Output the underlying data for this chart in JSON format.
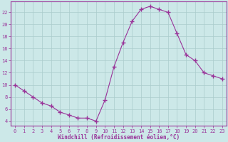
{
  "x": [
    0,
    1,
    2,
    3,
    4,
    5,
    6,
    7,
    8,
    9,
    10,
    11,
    12,
    13,
    14,
    15,
    16,
    17,
    18,
    19,
    20,
    21,
    22,
    23
  ],
  "y": [
    10,
    9,
    8,
    7,
    6.5,
    5.5,
    5,
    4.5,
    4.5,
    4,
    7.5,
    13,
    17,
    20.5,
    22.5,
    23,
    22.5,
    22,
    18.5,
    15,
    14,
    12,
    11.5,
    11
  ],
  "line_color": "#993399",
  "marker": "+",
  "marker_size": 4,
  "bg_color": "#cce8e8",
  "grid_color": "#aacccc",
  "xlabel": "Windchill (Refroidissement éolien,°C)",
  "xlim": [
    -0.5,
    23.5
  ],
  "ylim": [
    3.2,
    23.8
  ],
  "yticks": [
    4,
    6,
    8,
    10,
    12,
    14,
    16,
    18,
    20,
    22
  ],
  "xticks": [
    0,
    1,
    2,
    3,
    4,
    5,
    6,
    7,
    8,
    9,
    10,
    11,
    12,
    13,
    14,
    15,
    16,
    17,
    18,
    19,
    20,
    21,
    22,
    23
  ],
  "tick_color": "#993399",
  "label_color": "#993399",
  "spine_color": "#993399",
  "tick_fontsize": 5.0,
  "xlabel_fontsize": 5.5
}
